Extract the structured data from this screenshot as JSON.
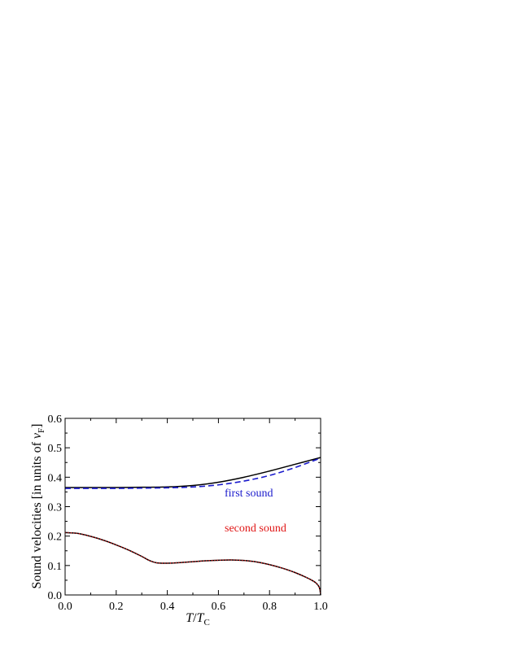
{
  "chart_data": {
    "type": "line",
    "xlabel": "T/T_C",
    "ylabel": "Sound velocities [in units of v_F]",
    "xlim": [
      0.0,
      1.0
    ],
    "ylim": [
      0.0,
      0.6
    ],
    "x_ticks": [
      "0.0",
      "0.2",
      "0.4",
      "0.6",
      "0.8",
      "1.0"
    ],
    "y_ticks": [
      "0.0",
      "0.1",
      "0.2",
      "0.3",
      "0.4",
      "0.5",
      "0.6"
    ],
    "grid": false,
    "annotations": [
      {
        "text": "first sound",
        "color": "#1a1acc"
      },
      {
        "text": "second sound",
        "color": "#e01515"
      }
    ],
    "series": [
      {
        "style": "solid",
        "color": "#000000",
        "x": [
          0.0,
          0.1,
          0.2,
          0.3,
          0.4,
          0.5,
          0.6,
          0.7,
          0.8,
          0.9,
          1.0
        ],
        "y": [
          0.365,
          0.365,
          0.365,
          0.366,
          0.367,
          0.372,
          0.383,
          0.4,
          0.421,
          0.444,
          0.467
        ]
      },
      {
        "style": "dashed",
        "color": "#1a1acc",
        "x": [
          0.0,
          0.1,
          0.2,
          0.3,
          0.4,
          0.5,
          0.6,
          0.7,
          0.8,
          0.9,
          1.0
        ],
        "y": [
          0.362,
          0.362,
          0.362,
          0.363,
          0.364,
          0.367,
          0.374,
          0.387,
          0.406,
          0.433,
          0.465
        ]
      },
      {
        "style": "solid",
        "color": "#000000",
        "x": [
          0.0,
          0.05,
          0.1,
          0.15,
          0.2,
          0.25,
          0.3,
          0.33,
          0.36,
          0.4,
          0.45,
          0.5,
          0.55,
          0.6,
          0.65,
          0.7,
          0.75,
          0.8,
          0.85,
          0.9,
          0.95,
          0.98,
          0.995,
          1.0
        ],
        "y": [
          0.212,
          0.209,
          0.199,
          0.186,
          0.17,
          0.152,
          0.131,
          0.117,
          0.109,
          0.108,
          0.11,
          0.113,
          0.116,
          0.118,
          0.119,
          0.117,
          0.112,
          0.103,
          0.091,
          0.076,
          0.057,
          0.042,
          0.025,
          0.0
        ]
      },
      {
        "style": "dotted",
        "color": "#e01515",
        "x": [
          0.0,
          0.05,
          0.1,
          0.15,
          0.2,
          0.25,
          0.3,
          0.33,
          0.36,
          0.4,
          0.45,
          0.5,
          0.55,
          0.6,
          0.65,
          0.7,
          0.75,
          0.8,
          0.85,
          0.9,
          0.95,
          0.98,
          0.995,
          1.0
        ],
        "y": [
          0.212,
          0.209,
          0.199,
          0.186,
          0.17,
          0.152,
          0.131,
          0.117,
          0.109,
          0.108,
          0.11,
          0.113,
          0.116,
          0.118,
          0.119,
          0.117,
          0.112,
          0.103,
          0.091,
          0.076,
          0.057,
          0.042,
          0.025,
          0.0
        ]
      }
    ]
  }
}
